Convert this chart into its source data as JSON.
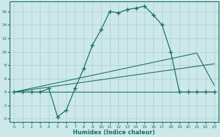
{
  "xlabel": "Humidex (Indice chaleur)",
  "bg_color": "#cce8e8",
  "line_color": "#1a6b6b",
  "grid_color": "#aacfcf",
  "xlim": [
    -0.5,
    23.5
  ],
  "ylim": [
    -0.5,
    17.5
  ],
  "yticks": [
    0,
    2,
    4,
    6,
    8,
    10,
    12,
    14,
    16
  ],
  "xticks": [
    0,
    1,
    2,
    3,
    4,
    5,
    6,
    7,
    8,
    9,
    10,
    11,
    12,
    13,
    14,
    15,
    16,
    17,
    18,
    19,
    20,
    21,
    22,
    23
  ],
  "curve1_x": [
    0,
    1,
    2,
    3,
    4,
    5,
    6,
    7,
    8,
    9,
    10,
    11,
    12,
    13,
    14,
    15,
    16,
    17,
    18,
    19,
    20,
    21,
    22,
    23
  ],
  "curve1_y": [
    4,
    4,
    4,
    4,
    4.5,
    0.3,
    1.3,
    4.5,
    7.5,
    11,
    13.3,
    16,
    15.8,
    16.3,
    16.5,
    16.8,
    15.5,
    14,
    10,
    4,
    4,
    4,
    4,
    4
  ],
  "curve2_x": [
    0,
    23
  ],
  "curve2_y": [
    4,
    4
  ],
  "curve3_x": [
    0,
    23
  ],
  "curve3_y": [
    4,
    8.2
  ],
  "curve4_x": [
    0,
    21,
    23
  ],
  "curve4_y": [
    4,
    9.8,
    5.0
  ]
}
